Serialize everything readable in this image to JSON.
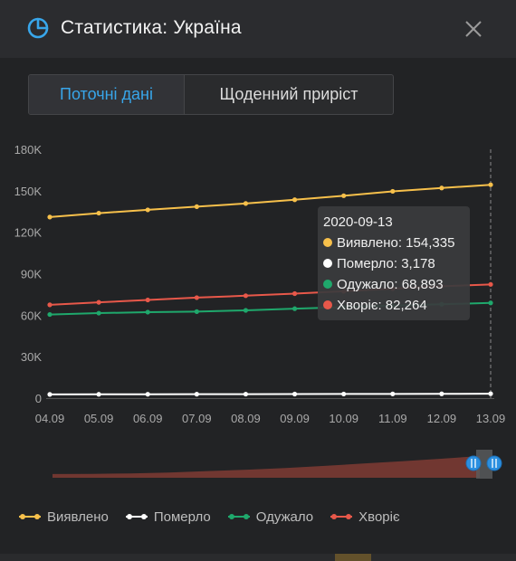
{
  "window": {
    "title": "Статистика: Україна",
    "icon": "pie-chart-icon",
    "close_icon": "close-icon"
  },
  "tabs": [
    {
      "label": "Поточні дані",
      "active": true
    },
    {
      "label": "Щоденний приріст",
      "active": false
    }
  ],
  "tooltip": {
    "date": "2020-09-13",
    "rows": [
      {
        "label": "Виявлено: 154,335",
        "color": "#f7c04b"
      },
      {
        "label": "Померло: 3,178",
        "color": "#ffffff"
      },
      {
        "label": "Одужало: 68,893",
        "color": "#1fa86c"
      },
      {
        "label": "Хворіє: 82,264",
        "color": "#e8584a"
      }
    ]
  },
  "colors": {
    "accent": "#38a6ea",
    "background": "#222325",
    "header": "#2b2c2f"
  },
  "chart_data": {
    "type": "line",
    "categories": [
      "04.09",
      "05.09",
      "06.09",
      "07.09",
      "08.09",
      "09.09",
      "10.09",
      "11.09",
      "12.09",
      "13.09"
    ],
    "yticks": [
      "0",
      "30K",
      "60K",
      "90K",
      "120K",
      "150K",
      "180K"
    ],
    "ylim": [
      0,
      180000
    ],
    "grid": false,
    "legend_position": "bottom",
    "series": [
      {
        "name": "Виявлено",
        "color": "#f7c04b",
        "values": [
          131000,
          133800,
          136200,
          138500,
          140800,
          143500,
          146400,
          149600,
          152000,
          154335
        ]
      },
      {
        "name": "Померло",
        "color": "#ffffff",
        "values": [
          2700,
          2760,
          2800,
          2850,
          2900,
          2950,
          3000,
          3050,
          3100,
          3178
        ]
      },
      {
        "name": "Одужало",
        "color": "#1fa86c",
        "values": [
          60500,
          61500,
          62200,
          62600,
          63500,
          64700,
          65800,
          66900,
          67900,
          68893
        ]
      },
      {
        "name": "Хворіє",
        "color": "#e8584a",
        "values": [
          67500,
          69300,
          71000,
          72700,
          74100,
          75600,
          77300,
          79200,
          80900,
          82264
        ]
      }
    ],
    "overview_values": [
      500,
      2000,
      6000,
      14000,
      26000,
      38000,
      52000,
      70000,
      90000,
      110000,
      131000,
      154335
    ]
  }
}
